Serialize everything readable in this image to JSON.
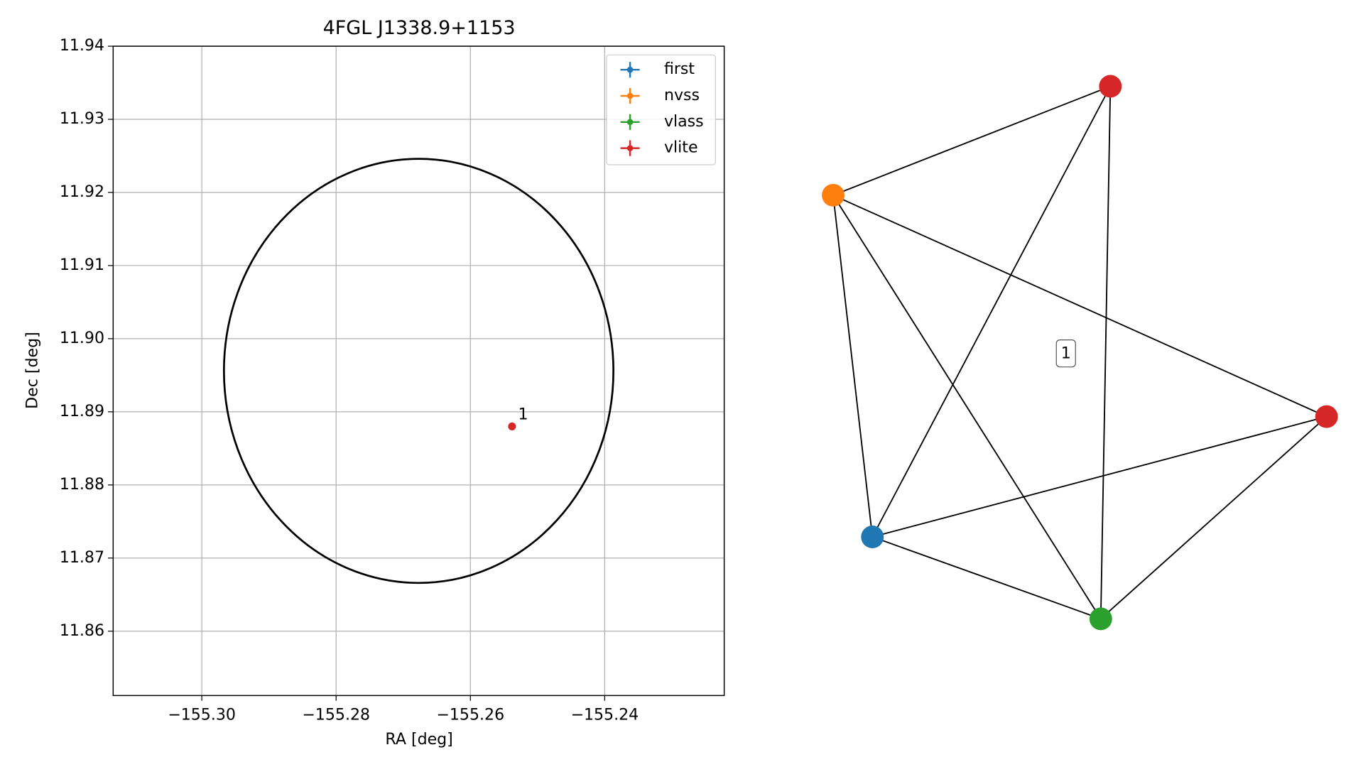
{
  "chart_data": [
    {
      "type": "scatter",
      "title": "4FGL J1338.9+1153",
      "x_label": "RA [deg]",
      "y_label": "Dec [deg]",
      "xlim": [
        -155.3132,
        -155.2222
      ],
      "ylim": [
        11.8512,
        11.94
      ],
      "xticks": [
        {
          "value": -155.3,
          "label": "−155.30"
        },
        {
          "value": -155.28,
          "label": "−155.28"
        },
        {
          "value": -155.26,
          "label": "−155.26"
        },
        {
          "value": -155.24,
          "label": "−155.24"
        }
      ],
      "yticks": [
        11.86,
        11.87,
        11.88,
        11.89,
        {
          "value": 11.9,
          "label": "11.90"
        },
        11.91,
        11.92,
        11.93,
        11.94
      ],
      "grid": true,
      "legend": "upper right",
      "circle": {
        "center": [
          -155.2677,
          11.8956
        ],
        "radius": 0.029,
        "color": "#000000"
      },
      "series": [
        {
          "name": "first",
          "color": "#1f77b4",
          "x": [],
          "y": [],
          "labels": []
        },
        {
          "name": "nvss",
          "color": "#ff7f0e",
          "x": [],
          "y": [],
          "labels": []
        },
        {
          "name": "vlass",
          "color": "#2ca02c",
          "x": [],
          "y": [],
          "labels": []
        },
        {
          "name": "vlite",
          "color": "#d62728",
          "x": [
            -155.2538
          ],
          "y": [
            11.888
          ],
          "labels": [
            "1"
          ]
        }
      ]
    },
    {
      "type": "graph",
      "label": "1",
      "nodes": [
        {
          "color": "#d62728"
        },
        {
          "color": "#ff7f0e"
        },
        {
          "color": "#d62728"
        },
        {
          "color": "#1f77b4"
        },
        {
          "color": "#2ca02c"
        }
      ],
      "edges": [
        [
          1,
          0
        ],
        [
          1,
          3
        ],
        [
          1,
          4
        ],
        [
          1,
          2
        ],
        [
          0,
          3
        ],
        [
          0,
          4
        ],
        [
          3,
          2
        ],
        [
          3,
          4
        ],
        [
          4,
          2
        ]
      ]
    }
  ]
}
